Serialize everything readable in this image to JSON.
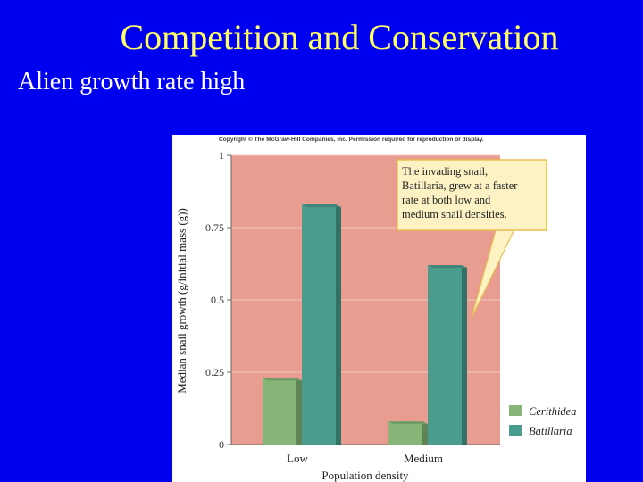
{
  "slide": {
    "title": "Competition and Conservation",
    "subtitle": "Alien growth rate high"
  },
  "figure": {
    "copyright": "Copyright © The McGraw-Hill Companies, Inc. Permission required for reproduction or display.",
    "callout_lines": [
      "The invading snail,",
      "Batillaria, grew at a faster",
      "rate at both low and",
      "medium snail densities."
    ]
  },
  "colors": {
    "background": "#0000f0",
    "title": "#ffff66",
    "plot_background": "#e89d90",
    "cerithidea": "#86b677",
    "batillaria": "#4a9c8e",
    "callout_fill": "#fdf2c4",
    "callout_border": "#e8c050"
  },
  "chart_data": {
    "type": "bar",
    "categories": [
      "Low",
      "Medium"
    ],
    "series": [
      {
        "name": "Cerithidea",
        "values": [
          0.23,
          0.08
        ]
      },
      {
        "name": "Batillaria",
        "values": [
          0.83,
          0.62
        ]
      }
    ],
    "xlabel": "Population density",
    "ylabel": "Median snail growth (g/initial mass (g))",
    "ylim": [
      0,
      1
    ],
    "yticks": [
      0,
      0.25,
      0.5,
      0.75,
      1
    ],
    "ytick_labels": [
      "0",
      "0.25",
      "0.5",
      "0.75",
      "1"
    ],
    "grid": true,
    "legend_position": "bottom-right"
  }
}
